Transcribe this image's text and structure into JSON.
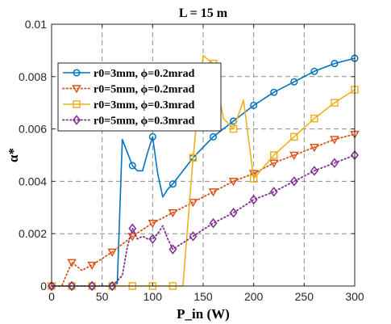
{
  "chart_data": {
    "type": "line",
    "title": "L = 15 m",
    "xlabel": "P_in (W)",
    "ylabel": "α*",
    "xlim": [
      0,
      300
    ],
    "ylim": [
      0,
      0.01
    ],
    "xticks": [
      0,
      50,
      100,
      150,
      200,
      250,
      300
    ],
    "yticks": [
      0,
      0.002,
      0.004,
      0.006,
      0.008,
      0.01
    ],
    "xtick_labels": [
      "0",
      "50",
      "100",
      "150",
      "200",
      "250",
      "300"
    ],
    "ytick_labels": [
      "0",
      "0.002",
      "0.004",
      "0.006",
      "0.008",
      "0.01"
    ],
    "grid": true,
    "legend_position": "upper-left",
    "series": [
      {
        "name": "r0=3mm, ϕ=0.2mrad",
        "color": "#0072BD",
        "line": "solid",
        "marker": "circle",
        "x": [
          0,
          20,
          40,
          60,
          65,
          70,
          75,
          80,
          85,
          90,
          95,
          100,
          105,
          110,
          115,
          120,
          140,
          160,
          180,
          200,
          220,
          240,
          260,
          280,
          300
        ],
        "y": [
          0,
          0,
          0,
          0,
          0.0001,
          0.0056,
          0.0051,
          0.0046,
          0.0044,
          0.0044,
          0.0051,
          0.0057,
          0.0043,
          0.0034,
          0.0037,
          0.0039,
          0.0049,
          0.0057,
          0.0063,
          0.0069,
          0.0074,
          0.0078,
          0.0082,
          0.0085,
          0.0087
        ],
        "markers_at": [
          0,
          20,
          40,
          60,
          80,
          100,
          120,
          140,
          160,
          180,
          200,
          220,
          240,
          260,
          280,
          300
        ]
      },
      {
        "name": "r0=5mm, ϕ=0.2mrad",
        "color": "#D95319",
        "line": "dotted",
        "marker": "triangle-down",
        "x": [
          0,
          10,
          20,
          30,
          40,
          60,
          80,
          100,
          120,
          140,
          160,
          180,
          200,
          220,
          240,
          260,
          280,
          300
        ],
        "y": [
          0,
          0,
          0.0009,
          0.0006,
          0.0008,
          0.0013,
          0.0019,
          0.0024,
          0.0028,
          0.0032,
          0.0036,
          0.004,
          0.0043,
          0.0047,
          0.005,
          0.0053,
          0.0056,
          0.0058
        ],
        "markers_at": [
          0,
          20,
          40,
          60,
          80,
          100,
          120,
          140,
          160,
          180,
          200,
          220,
          240,
          260,
          280,
          300
        ]
      },
      {
        "name": "r0=3mm, ϕ=0.3mrad",
        "color": "#EDB120",
        "line": "solid",
        "marker": "square",
        "x": [
          0,
          20,
          40,
          60,
          80,
          100,
          120,
          130,
          140,
          150,
          160,
          170,
          180,
          190,
          200,
          220,
          240,
          260,
          280,
          300
        ],
        "y": [
          0,
          0,
          0,
          0,
          0,
          0,
          0,
          0,
          0.0049,
          0.0088,
          0.0085,
          0.0064,
          0.006,
          0.0071,
          0.0041,
          0.005,
          0.0057,
          0.0064,
          0.007,
          0.0075
        ],
        "markers_at": [
          0,
          20,
          40,
          60,
          80,
          100,
          120,
          140,
          160,
          180,
          200,
          220,
          240,
          260,
          280,
          300
        ]
      },
      {
        "name": "r0=5mm, ϕ=0.3mrad",
        "color": "#7E2F8E",
        "line": "dotted",
        "marker": "diamond",
        "x": [
          0,
          20,
          40,
          60,
          70,
          75,
          80,
          85,
          90,
          95,
          100,
          105,
          110,
          115,
          120,
          140,
          160,
          180,
          200,
          220,
          240,
          260,
          280,
          300
        ],
        "y": [
          0,
          0,
          0,
          0,
          0.0004,
          0.0015,
          0.0022,
          0.0018,
          0.0019,
          0.0018,
          0.0018,
          0.002,
          0.0023,
          0.0018,
          0.0014,
          0.0019,
          0.0024,
          0.0028,
          0.0033,
          0.0036,
          0.004,
          0.0044,
          0.0047,
          0.005
        ],
        "markers_at": [
          0,
          20,
          40,
          60,
          80,
          100,
          120,
          140,
          160,
          180,
          200,
          220,
          240,
          260,
          280,
          300
        ]
      }
    ]
  }
}
